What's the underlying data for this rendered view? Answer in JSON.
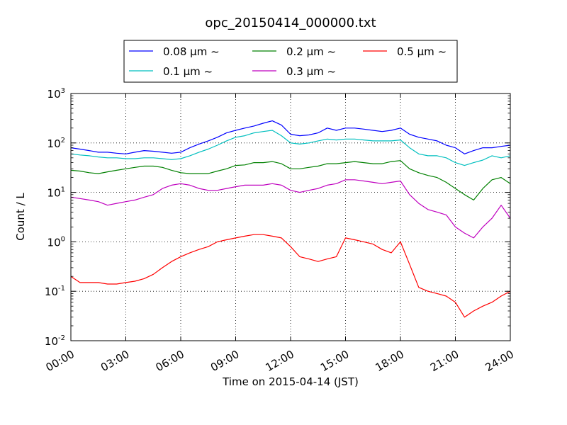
{
  "chart_data": {
    "type": "line",
    "title": "opc_20150414_000000.txt",
    "xlabel": "Time on 2015-04-14 (JST)",
    "ylabel": "Count / L",
    "x_unit": "hours",
    "xlim": [
      0,
      24
    ],
    "ylim": [
      0.01,
      1000
    ],
    "yscale": "log",
    "grid": true,
    "legend_position": "top",
    "x_tick_labels": [
      "00:00",
      "03:00",
      "06:00",
      "09:00",
      "12:00",
      "15:00",
      "18:00",
      "21:00",
      "24:00"
    ],
    "y_tick_labels": [
      {
        "base": "10",
        "exp": "-2"
      },
      {
        "base": "10",
        "exp": "-1"
      },
      {
        "base": "10",
        "exp": "0"
      },
      {
        "base": "10",
        "exp": "1"
      },
      {
        "base": "10",
        "exp": "2"
      },
      {
        "base": "10",
        "exp": "3"
      }
    ],
    "series": [
      {
        "name": "0.08 μm ~",
        "color": "#0000ff",
        "x": [
          0,
          0.5,
          1,
          1.5,
          2,
          2.5,
          3,
          3.5,
          4,
          4.5,
          5,
          5.5,
          6,
          6.5,
          7,
          7.5,
          8,
          8.5,
          9,
          9.5,
          10,
          10.5,
          11,
          11.5,
          12,
          12.5,
          13,
          13.5,
          14,
          14.5,
          15,
          15.5,
          16,
          16.5,
          17,
          17.5,
          18,
          18.5,
          19,
          19.5,
          20,
          20.5,
          21,
          21.5,
          22,
          22.5,
          23,
          23.5,
          24
        ],
        "y": [
          80,
          75,
          70,
          65,
          65,
          62,
          60,
          65,
          70,
          68,
          65,
          62,
          65,
          80,
          95,
          110,
          130,
          160,
          180,
          200,
          220,
          250,
          280,
          230,
          150,
          140,
          145,
          160,
          200,
          180,
          200,
          200,
          190,
          180,
          170,
          180,
          200,
          150,
          130,
          120,
          110,
          90,
          80,
          60,
          70,
          80,
          80,
          85,
          90
        ]
      },
      {
        "name": "0.1 μm ~",
        "color": "#00bfbf",
        "x": [
          0,
          0.5,
          1,
          1.5,
          2,
          2.5,
          3,
          3.5,
          4,
          4.5,
          5,
          5.5,
          6,
          6.5,
          7,
          7.5,
          8,
          8.5,
          9,
          9.5,
          10,
          10.5,
          11,
          11.5,
          12,
          12.5,
          13,
          13.5,
          14,
          14.5,
          15,
          15.5,
          16,
          16.5,
          17,
          17.5,
          18,
          18.5,
          19,
          19.5,
          20,
          20.5,
          21,
          21.5,
          22,
          22.5,
          23,
          23.5,
          24
        ],
        "y": [
          60,
          57,
          55,
          52,
          50,
          50,
          48,
          48,
          50,
          50,
          48,
          46,
          48,
          55,
          65,
          75,
          90,
          110,
          130,
          140,
          160,
          170,
          180,
          140,
          100,
          95,
          100,
          110,
          120,
          115,
          120,
          120,
          115,
          110,
          110,
          110,
          115,
          80,
          60,
          55,
          55,
          50,
          40,
          35,
          40,
          45,
          55,
          50,
          55
        ]
      },
      {
        "name": "0.2 μm ~",
        "color": "#008000",
        "x": [
          0,
          0.5,
          1,
          1.5,
          2,
          2.5,
          3,
          3.5,
          4,
          4.5,
          5,
          5.5,
          6,
          6.5,
          7,
          7.5,
          8,
          8.5,
          9,
          9.5,
          10,
          10.5,
          11,
          11.5,
          12,
          12.5,
          13,
          13.5,
          14,
          14.5,
          15,
          15.5,
          16,
          16.5,
          17,
          17.5,
          18,
          18.5,
          19,
          19.5,
          20,
          20.5,
          21,
          21.5,
          22,
          22.5,
          23,
          23.5,
          24
        ],
        "y": [
          28,
          27,
          25,
          24,
          26,
          28,
          30,
          32,
          34,
          34,
          32,
          28,
          25,
          24,
          24,
          24,
          27,
          30,
          35,
          36,
          40,
          40,
          42,
          38,
          30,
          30,
          32,
          34,
          38,
          38,
          40,
          42,
          40,
          38,
          38,
          42,
          44,
          30,
          25,
          22,
          20,
          16,
          12,
          9,
          7,
          12,
          18,
          20,
          15
        ]
      },
      {
        "name": "0.3 μm ~",
        "color": "#bf00bf",
        "x": [
          0,
          0.5,
          1,
          1.5,
          2,
          2.5,
          3,
          3.5,
          4,
          4.5,
          5,
          5.5,
          6,
          6.5,
          7,
          7.5,
          8,
          8.5,
          9,
          9.5,
          10,
          10.5,
          11,
          11.5,
          12,
          12.5,
          13,
          13.5,
          14,
          14.5,
          15,
          15.5,
          16,
          16.5,
          17,
          17.5,
          18,
          18.5,
          19,
          19.5,
          20,
          20.5,
          21,
          21.5,
          22,
          22.5,
          23,
          23.5,
          24
        ],
        "y": [
          8,
          7.5,
          7,
          6.5,
          5.5,
          6,
          6.5,
          7,
          8,
          9,
          12,
          14,
          15,
          14,
          12,
          11,
          11,
          12,
          13,
          14,
          14,
          14,
          15,
          14,
          11,
          10,
          11,
          12,
          14,
          15,
          18,
          18,
          17,
          16,
          15,
          16,
          17,
          9,
          6,
          4.5,
          4,
          3.5,
          2,
          1.5,
          1.2,
          2,
          3,
          5.5,
          3
        ]
      },
      {
        "name": "0.5 μm ~",
        "color": "#ff0000",
        "x": [
          0,
          0.5,
          1,
          1.5,
          2,
          2.5,
          3,
          3.5,
          4,
          4.5,
          5,
          5.5,
          6,
          6.5,
          7,
          7.5,
          8,
          8.5,
          9,
          9.5,
          10,
          10.5,
          11,
          11.5,
          12,
          12.5,
          13,
          13.5,
          14,
          14.5,
          15,
          15.5,
          16,
          16.5,
          17,
          17.5,
          18,
          18.5,
          19,
          19.5,
          20,
          20.5,
          21,
          21.5,
          22,
          22.5,
          23,
          23.5,
          24
        ],
        "y": [
          0.2,
          0.15,
          0.15,
          0.15,
          0.14,
          0.14,
          0.15,
          0.16,
          0.18,
          0.22,
          0.3,
          0.4,
          0.5,
          0.6,
          0.7,
          0.8,
          1.0,
          1.1,
          1.2,
          1.3,
          1.4,
          1.4,
          1.3,
          1.2,
          0.8,
          0.5,
          0.45,
          0.4,
          0.45,
          0.5,
          1.2,
          1.1,
          1.0,
          0.9,
          0.7,
          0.6,
          1.0,
          0.35,
          0.12,
          0.1,
          0.09,
          0.08,
          0.06,
          0.03,
          0.04,
          0.05,
          0.06,
          0.08,
          0.1
        ]
      }
    ]
  }
}
